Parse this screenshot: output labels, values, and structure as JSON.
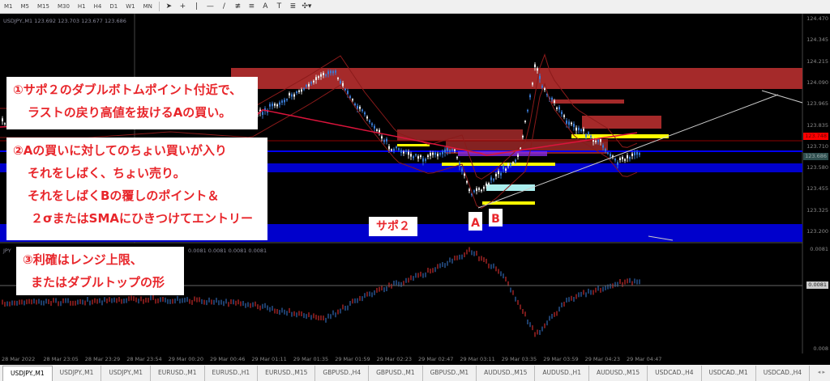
{
  "toolbar": {
    "timeframes": [
      "M1",
      "M5",
      "M15",
      "M30",
      "H1",
      "H4",
      "D1",
      "W1",
      "MN"
    ],
    "tools": [
      "cursor-icon",
      "crosshair-icon",
      "vertical-line-icon",
      "horizontal-line-icon",
      "trendline-icon",
      "channel-icon",
      "fibonacci-icon",
      "text-icon",
      "text-label-icon",
      "fibo-fan-icon",
      "shapes-icon"
    ],
    "text_tool": "A"
  },
  "chart": {
    "header": "USDJPY.,M1  123.692 123.703 123.677 123.686",
    "price_axis": [
      "124.470",
      "124.345",
      "124.215",
      "124.090",
      "123.965",
      "123.835",
      "123.710",
      "123.580",
      "123.455",
      "123.325",
      "123.200"
    ],
    "bid_tag": "123.748",
    "ask_tag": "123.686",
    "indicator_header": "JPY",
    "indicator_values": "0.0081 0.0081 0.0081 0.0081",
    "indicator_axis_top": "0.0081",
    "indicator_tag": "0.0081",
    "indicator_axis_bottom": "0.008",
    "colors": {
      "resistance": "#a52a2a",
      "support": "#0000cc",
      "yellow": "#ffff00",
      "ma": "#dc143c"
    }
  },
  "annotations": {
    "note1": [
      "①サポ２のダブルボトムポイント付近で、",
      "ラストの戻り高値を抜けるAの買い。"
    ],
    "note2": [
      "②Aの買いに対してのちょい買いが入り",
      "それをしばく、ちょい売り。",
      "それをしばくBの覆しのポイント＆",
      "２σまたはSMAにひきつけてエントリー"
    ],
    "note3": [
      "③利確はレンジ上限、",
      "またはダブルトップの形"
    ],
    "support_label": "サポ２",
    "label_a": "A",
    "label_b": "B"
  },
  "time_axis": [
    "28 Mar 2022",
    "28 Mar 23:05",
    "28 Mar 23:29",
    "28 Mar 23:54",
    "29 Mar 00:20",
    "29 Mar 00:46",
    "29 Mar 01:11",
    "29 Mar 01:35",
    "29 Mar 01:59",
    "29 Mar 02:23",
    "29 Mar 02:47",
    "29 Mar 03:11",
    "29 Mar 03:35",
    "29 Mar 03:59",
    "29 Mar 04:23",
    "29 Mar 04:47"
  ],
  "tabs": [
    "USDJPY.,M1",
    "USDJPY.,M1",
    "USDJPY.,M1",
    "EURUSD.,M1",
    "EURUSD.,H1",
    "EURUSD.,M15",
    "GBPUSD.,H4",
    "GBPUSD.,M1",
    "GBPUSD.,M1",
    "AUDUSD.,M15",
    "AUDUSD.,H1",
    "AUDUSD.,M15",
    "USDCAD.,H4",
    "USDCAD.,M1",
    "USDCAD.,H4"
  ],
  "active_tab": 0
}
